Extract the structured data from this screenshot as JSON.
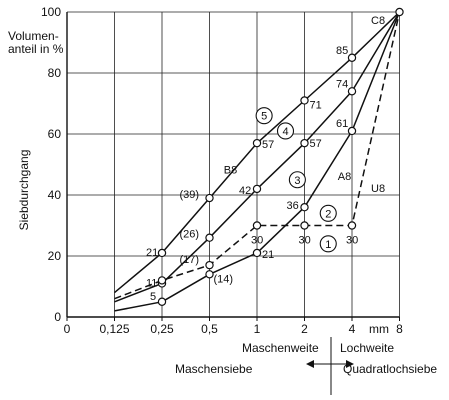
{
  "chart_data": {
    "type": "line",
    "title": "",
    "xlabel": "mm",
    "ylabel": "Siebdurchgang",
    "y_unit_label": [
      "Volumen-",
      "anteil in %"
    ],
    "x_ticks": [
      {
        "label": "0",
        "pos": 0
      },
      {
        "label": "0,125",
        "pos": 1
      },
      {
        "label": "0,25",
        "pos": 2
      },
      {
        "label": "0,5",
        "pos": 3
      },
      {
        "label": "1",
        "pos": 4
      },
      {
        "label": "2",
        "pos": 5
      },
      {
        "label": "4",
        "pos": 6
      },
      {
        "label": "8",
        "pos": 7
      }
    ],
    "y_ticks": [
      0,
      20,
      40,
      60,
      80,
      100
    ],
    "ylim": [
      0,
      100
    ],
    "grid": true,
    "curves": [
      {
        "name": "C8",
        "style": "solid",
        "x": [
          1,
          2,
          3,
          4,
          5,
          6,
          7
        ],
        "y": [
          8,
          21,
          39,
          57,
          71,
          85,
          100
        ]
      },
      {
        "name": "B8",
        "style": "solid",
        "x": [
          1,
          2,
          3,
          4,
          5,
          6,
          7
        ],
        "y": [
          5,
          11,
          26,
          42,
          57,
          74,
          100
        ]
      },
      {
        "name": "A8",
        "style": "solid",
        "x": [
          1,
          2,
          3,
          4,
          5,
          6,
          7
        ],
        "y": [
          2,
          5,
          14,
          21,
          36,
          61,
          100
        ]
      },
      {
        "name": "U8",
        "style": "dashed",
        "x": [
          1,
          2,
          3,
          4,
          5,
          6,
          7
        ],
        "y": [
          6,
          12,
          17,
          30,
          30,
          30,
          100
        ]
      }
    ],
    "point_labels": [
      {
        "text": "85",
        "x": 6,
        "y": 85,
        "dx": -16,
        "dy": -4
      },
      {
        "text": "74",
        "x": 6,
        "y": 74,
        "dx": -16,
        "dy": -4
      },
      {
        "text": "61",
        "x": 6,
        "y": 61,
        "dx": -16,
        "dy": -4
      },
      {
        "text": "30",
        "x": 6,
        "y": 30,
        "dx": -6,
        "dy": 18
      },
      {
        "text": "71",
        "x": 5,
        "y": 71,
        "dx": 5,
        "dy": 8
      },
      {
        "text": "57",
        "x": 5,
        "y": 57,
        "dx": 5,
        "dy": 4
      },
      {
        "text": "36",
        "x": 5,
        "y": 36,
        "dx": -18,
        "dy": 2
      },
      {
        "text": "30",
        "x": 5,
        "y": 30,
        "dx": -6,
        "dy": 18
      },
      {
        "text": "57",
        "x": 4,
        "y": 57,
        "dx": 5,
        "dy": 5
      },
      {
        "text": "42",
        "x": 4,
        "y": 42,
        "dx": -18,
        "dy": 5
      },
      {
        "text": "30",
        "x": 4,
        "y": 30,
        "dx": -6,
        "dy": 18
      },
      {
        "text": "21",
        "x": 4,
        "y": 21,
        "dx": 5,
        "dy": 5
      },
      {
        "text": "(39)",
        "x": 3,
        "y": 39,
        "dx": -30,
        "dy": 0
      },
      {
        "text": "(26)",
        "x": 3,
        "y": 26,
        "dx": -30,
        "dy": 0
      },
      {
        "text": "(17)",
        "x": 3,
        "y": 17,
        "dx": -30,
        "dy": -2
      },
      {
        "text": "(14)",
        "x": 3,
        "y": 14,
        "dx": 4,
        "dy": 8
      },
      {
        "text": "21",
        "x": 2,
        "y": 21,
        "dx": -16,
        "dy": 3
      },
      {
        "text": "11",
        "x": 2,
        "y": 11,
        "dx": -16,
        "dy": 3
      },
      {
        "text": "5",
        "x": 2,
        "y": 5,
        "dx": -12,
        "dy": -2
      }
    ],
    "curve_labels": [
      {
        "text": "C8",
        "x": 6.4,
        "y": 96
      },
      {
        "text": "B8",
        "x": 3.3,
        "y": 47
      },
      {
        "text": "A8",
        "x": 5.7,
        "y": 45
      },
      {
        "text": "U8",
        "x": 6.4,
        "y": 41
      }
    ],
    "area_labels": [
      {
        "text": "1",
        "x": 5.5,
        "y": 24
      },
      {
        "text": "2",
        "x": 5.5,
        "y": 34
      },
      {
        "text": "3",
        "x": 4.85,
        "y": 45
      },
      {
        "text": "4",
        "x": 4.6,
        "y": 61
      },
      {
        "text": "5",
        "x": 4.15,
        "y": 66
      }
    ],
    "footer": {
      "maschenweite": "Maschenweite",
      "lochweite": "Lochweite",
      "maschensiebe": "Maschensiebe",
      "quadratlochsiebe": "Quadratlochsiebe"
    }
  }
}
